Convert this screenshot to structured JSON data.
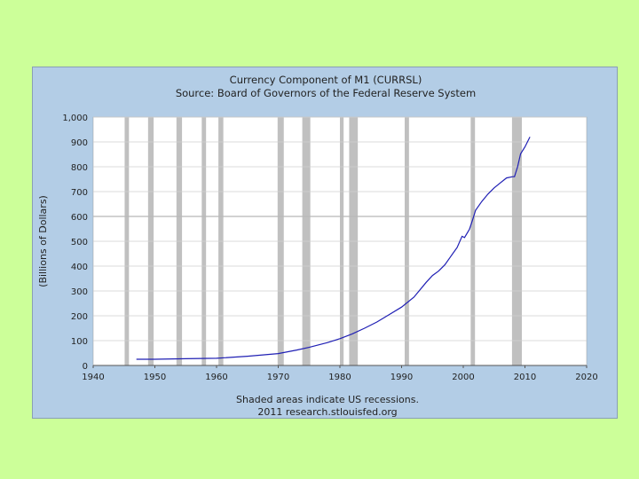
{
  "chart_data": {
    "type": "line",
    "title": "Currency Component of M1 (CURRSL)",
    "subtitle": "Source: Board of Governors of the Federal Reserve System",
    "xlabel": "",
    "ylabel": "(Billions of Dollars)",
    "xlim": [
      1940,
      2020
    ],
    "ylim": [
      0,
      1000
    ],
    "x_ticks": [
      "1940",
      "1950",
      "1960",
      "1970",
      "1980",
      "1990",
      "2000",
      "2010",
      "2020"
    ],
    "y_ticks": [
      "0",
      "100",
      "200",
      "300",
      "400",
      "500",
      "600",
      "700",
      "800",
      "900",
      "1,000"
    ],
    "grid": true,
    "line_color": "#1f1fb4",
    "recession_color": "#c0c0c0",
    "recessions": [
      [
        1945.1,
        1945.8
      ],
      [
        1948.9,
        1949.8
      ],
      [
        1953.5,
        1954.4
      ],
      [
        1957.6,
        1958.3
      ],
      [
        1960.3,
        1961.1
      ],
      [
        1969.9,
        1970.9
      ],
      [
        1973.9,
        1975.2
      ],
      [
        1980.0,
        1980.6
      ],
      [
        1981.5,
        1982.9
      ],
      [
        1990.5,
        1991.2
      ],
      [
        2001.2,
        2001.9
      ],
      [
        2007.9,
        2009.5
      ]
    ],
    "series": [
      {
        "x": [
          1947,
          1950,
          1955,
          1960,
          1965,
          1970,
          1973,
          1975,
          1978,
          1980,
          1982,
          1984,
          1986,
          1988,
          1990,
          1992,
          1994,
          1995,
          1996,
          1997,
          1998,
          1999,
          1999.8,
          2000.2,
          2001,
          2001.5,
          2002,
          2003,
          2004,
          2005,
          2006,
          2007,
          2008,
          2008.3,
          2008.8,
          2009.3,
          2010,
          2010.8
        ],
        "y": [
          25,
          25,
          27,
          29,
          37,
          48,
          62,
          73,
          92,
          108,
          127,
          150,
          175,
          205,
          235,
          275,
          335,
          362,
          380,
          405,
          440,
          475,
          520,
          515,
          548,
          585,
          625,
          660,
          690,
          715,
          735,
          755,
          760,
          760,
          800,
          852,
          880,
          920
        ]
      }
    ],
    "footer_line1": "Shaded areas indicate US recessions.",
    "footer_line2": "2011 research.stlouisfed.org"
  }
}
